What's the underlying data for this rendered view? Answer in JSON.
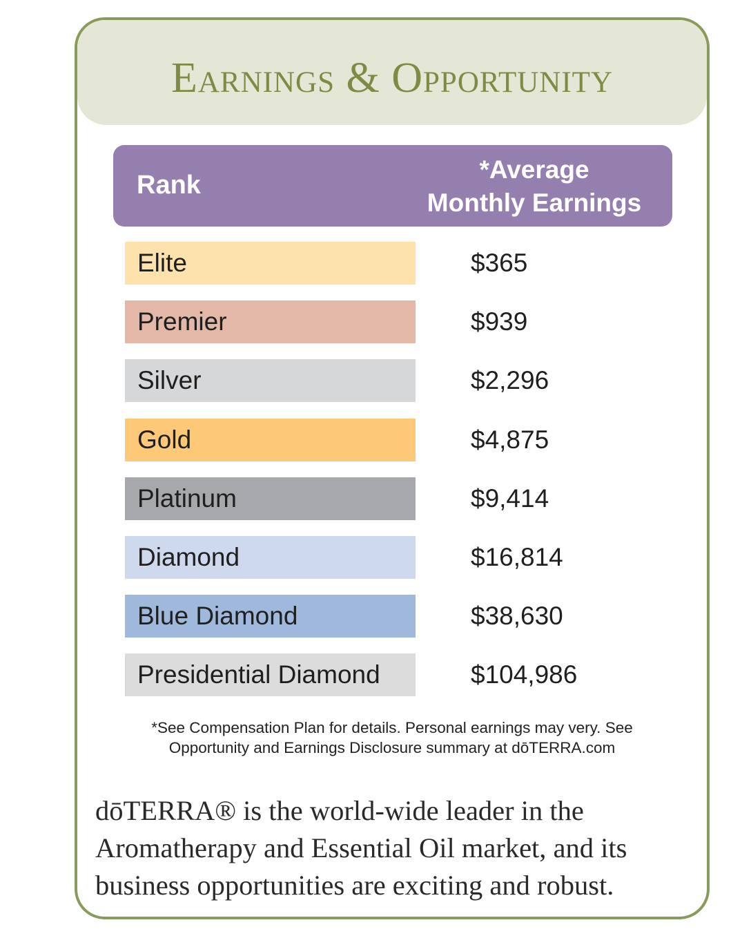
{
  "title": "Earnings & Opportunity",
  "table": {
    "header_rank": "Rank",
    "header_earnings_line1": "*Average",
    "header_earnings_line2": "Monthly Earnings",
    "rows": [
      {
        "rank": "Elite",
        "earnings": "$365",
        "color": "#fde2ad"
      },
      {
        "rank": "Premier",
        "earnings": "$939",
        "color": "#e3b8a8"
      },
      {
        "rank": "Silver",
        "earnings": "$2,296",
        "color": "#d6d7d9"
      },
      {
        "rank": "Gold",
        "earnings": "$4,875",
        "color": "#fdc878"
      },
      {
        "rank": "Platinum",
        "earnings": "$9,414",
        "color": "#a7a8ab"
      },
      {
        "rank": "Diamond",
        "earnings": "$16,814",
        "color": "#cfd9ee"
      },
      {
        "rank": "Blue Diamond",
        "earnings": "$38,630",
        "color": "#9fb8dc"
      },
      {
        "rank": "Presidential Diamond",
        "earnings": "$104,986",
        "color": "#dcdcdc"
      }
    ]
  },
  "footnote": {
    "line1": "*See Compensation Plan for details. Personal earnings may very. See",
    "line2": "Opportunity and Earnings Disclosure summary at dōTERRA.com"
  },
  "blurb": {
    "line1": "dōTERRA® is the world-wide leader in the",
    "line2": "Aromatherapy and Essential Oil market, and its",
    "line3": "business opportunities are exciting and robust."
  },
  "colors": {
    "border": "#8a9a5b",
    "title_band": "#e4e6d6",
    "title_text": "#7f8a45",
    "table_header": "#957fae"
  }
}
